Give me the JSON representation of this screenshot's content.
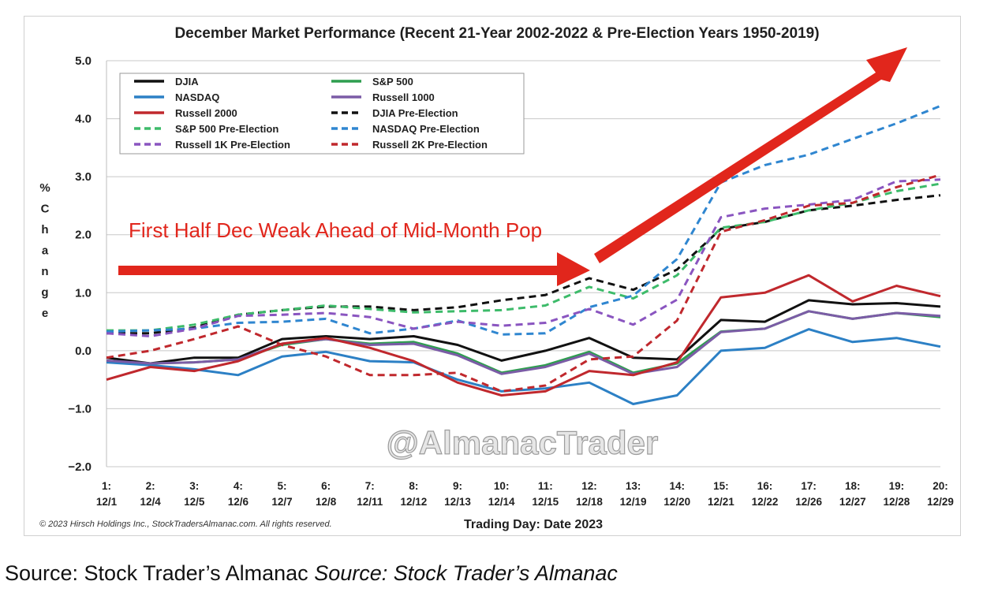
{
  "caption": {
    "plain": "Source: Stock Trader’s Almanac",
    "italic": "Source: Stock Trader’s Almanac"
  },
  "chart_data": {
    "type": "line",
    "title": "December Market Performance (Recent 21-Year 2002-2022 & Pre-Election Years 1950-2019)",
    "xlabel": "Trading Day: Date 2023",
    "ylabel": "% Change",
    "ylim": [
      -2.0,
      5.0
    ],
    "yticks": [
      "5.0",
      "4.0",
      "3.0",
      "2.0",
      "1.0",
      "0.0",
      "−1.0",
      "−2.0"
    ],
    "yticks_values": [
      5,
      4,
      3,
      2,
      1,
      0,
      -1,
      -2
    ],
    "grid": true,
    "legend_position": "top-left",
    "categories": [
      [
        "1:",
        "12/1"
      ],
      [
        "2:",
        "12/4"
      ],
      [
        "3:",
        "12/5"
      ],
      [
        "4:",
        "12/6"
      ],
      [
        "5:",
        "12/7"
      ],
      [
        "6:",
        "12/8"
      ],
      [
        "7:",
        "12/11"
      ],
      [
        "8:",
        "12/12"
      ],
      [
        "9:",
        "12/13"
      ],
      [
        "10:",
        "12/14"
      ],
      [
        "11:",
        "12/15"
      ],
      [
        "12:",
        "12/18"
      ],
      [
        "13:",
        "12/19"
      ],
      [
        "14:",
        "12/20"
      ],
      [
        "15:",
        "12/21"
      ],
      [
        "16:",
        "12/22"
      ],
      [
        "17:",
        "12/26"
      ],
      [
        "18:",
        "12/27"
      ],
      [
        "19:",
        "12/28"
      ],
      [
        "20:",
        "12/29"
      ]
    ],
    "series": [
      {
        "name": "DJIA",
        "color": "#111111",
        "dashed": false,
        "values": [
          -0.12,
          -0.22,
          -0.12,
          -0.12,
          0.2,
          0.25,
          0.2,
          0.25,
          0.1,
          -0.17,
          0.0,
          0.22,
          -0.12,
          -0.15,
          0.53,
          0.5,
          0.87,
          0.8,
          0.82,
          0.76
        ]
      },
      {
        "name": "S&P 500",
        "color": "#2e9e4f",
        "dashed": false,
        "values": [
          -0.18,
          -0.22,
          -0.2,
          -0.15,
          0.1,
          0.2,
          0.12,
          0.15,
          -0.05,
          -0.38,
          -0.25,
          -0.02,
          -0.38,
          -0.22,
          0.33,
          0.38,
          0.68,
          0.55,
          0.65,
          0.58
        ]
      },
      {
        "name": "NASDAQ",
        "color": "#2c80c5",
        "dashed": false,
        "values": [
          -0.2,
          -0.25,
          -0.32,
          -0.42,
          -0.1,
          -0.02,
          -0.18,
          -0.2,
          -0.5,
          -0.7,
          -0.65,
          -0.55,
          -0.92,
          -0.77,
          0.0,
          0.05,
          0.37,
          0.15,
          0.22,
          0.07
        ]
      },
      {
        "name": "Russell 1000",
        "color": "#7b5ca6",
        "dashed": false,
        "values": [
          -0.17,
          -0.22,
          -0.2,
          -0.15,
          0.12,
          0.2,
          0.1,
          0.12,
          -0.08,
          -0.4,
          -0.28,
          -0.05,
          -0.4,
          -0.28,
          0.32,
          0.38,
          0.68,
          0.55,
          0.65,
          0.6
        ]
      },
      {
        "name": "Russell 2000",
        "color": "#c0282d",
        "dashed": false,
        "values": [
          -0.5,
          -0.28,
          -0.35,
          -0.18,
          0.12,
          0.22,
          0.05,
          -0.18,
          -0.55,
          -0.77,
          -0.7,
          -0.35,
          -0.42,
          -0.2,
          0.92,
          1.0,
          1.3,
          0.85,
          1.12,
          0.94
        ]
      },
      {
        "name": "DJIA Pre-Election",
        "color": "#111111",
        "dashed": true,
        "values": [
          0.3,
          0.3,
          0.4,
          0.62,
          0.7,
          0.76,
          0.76,
          0.7,
          0.75,
          0.87,
          0.96,
          1.25,
          1.05,
          1.4,
          2.1,
          2.22,
          2.42,
          2.5,
          2.6,
          2.68
        ]
      },
      {
        "name": "S&P 500 Pre-Election",
        "color": "#3dbb6a",
        "dashed": true,
        "values": [
          0.35,
          0.35,
          0.45,
          0.62,
          0.7,
          0.78,
          0.72,
          0.66,
          0.68,
          0.7,
          0.78,
          1.1,
          0.9,
          1.3,
          2.12,
          2.22,
          2.42,
          2.55,
          2.75,
          2.88
        ]
      },
      {
        "name": "NASDAQ Pre-Election",
        "color": "#2f86d0",
        "dashed": true,
        "values": [
          0.33,
          0.35,
          0.38,
          0.48,
          0.5,
          0.55,
          0.3,
          0.38,
          0.52,
          0.28,
          0.3,
          0.75,
          0.95,
          1.58,
          2.9,
          3.2,
          3.38,
          3.65,
          3.92,
          4.22
        ]
      },
      {
        "name": "Russell 1K Pre-Election",
        "color": "#8a55c0",
        "dashed": true,
        "values": [
          0.3,
          0.25,
          0.38,
          0.6,
          0.62,
          0.65,
          0.58,
          0.38,
          0.5,
          0.43,
          0.48,
          0.72,
          0.45,
          0.88,
          2.3,
          2.45,
          2.52,
          2.6,
          2.92,
          2.95
        ]
      },
      {
        "name": "Russell 2K Pre-Election",
        "color": "#c0282d",
        "dashed": true,
        "values": [
          -0.12,
          0.0,
          0.2,
          0.42,
          0.1,
          -0.1,
          -0.42,
          -0.42,
          -0.38,
          -0.7,
          -0.6,
          -0.15,
          -0.1,
          0.52,
          2.05,
          2.25,
          2.5,
          2.55,
          2.82,
          3.03
        ]
      }
    ],
    "annotations": [
      {
        "text": "First Half Dec Weak Ahead of Mid-Month Pop",
        "color": "#e1261c"
      }
    ],
    "watermark": "@AlmanacTrader",
    "copyright": "© 2023 Hirsch Holdings Inc., StockTradersAlmanac.com. All rights reserved.",
    "accent_color": "#e1261c"
  }
}
